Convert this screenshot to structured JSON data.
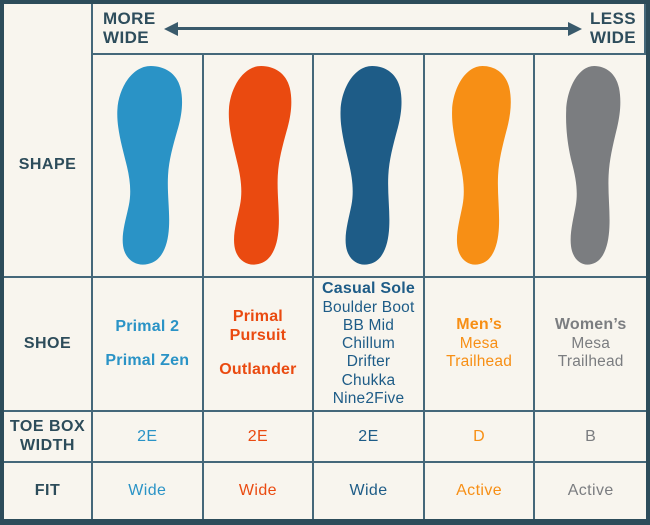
{
  "header": {
    "more": [
      "MORE",
      "WIDE"
    ],
    "less": [
      "LESS",
      "WIDE"
    ],
    "arrow_icon": "double-headed-arrow-icon"
  },
  "row_labels": {
    "shape": "SHAPE",
    "shoe": "SHOE",
    "toe_box_line1": "TOE BOX",
    "toe_box_line2": "WIDTH",
    "fit": "FIT"
  },
  "colors": {
    "background": "#f8f5ee",
    "outer_border": "#2d4c5a",
    "grid_line": "#45687a",
    "label_text": "#2d4c5a",
    "arrow": "#3a5a6b"
  },
  "columns": [
    {
      "name": "primal",
      "color": "#2a93c6",
      "shape_icon": "footprint-icon",
      "shoe_lines": [
        {
          "text": "Primal 2",
          "bold": true
        },
        {
          "text": "Primal Zen",
          "bold": true,
          "gap": true
        }
      ],
      "toe_box_width": "2E",
      "fit": "Wide"
    },
    {
      "name": "pursuit-outlander",
      "color": "#ea4a10",
      "shape_icon": "footprint-icon",
      "shoe_lines": [
        {
          "text": "Primal Pursuit",
          "bold": true
        },
        {
          "text": "Outlander",
          "bold": true,
          "gap": true
        }
      ],
      "toe_box_width": "2E",
      "fit": "Wide"
    },
    {
      "name": "casual-sole",
      "color": "#1e5c87",
      "shape_icon": "footprint-icon",
      "shoe_lines": [
        {
          "text": "Casual Sole",
          "bold": true
        },
        {
          "text": "Boulder Boot"
        },
        {
          "text": "BB Mid"
        },
        {
          "text": "Chillum"
        },
        {
          "text": "Drifter"
        },
        {
          "text": "Chukka"
        },
        {
          "text": "Nine2Five"
        }
      ],
      "toe_box_width": "2E",
      "fit": "Wide"
    },
    {
      "name": "mens-mesa-trailhead",
      "color": "#f78f15",
      "shape_icon": "footprint-icon",
      "shoe_lines": [
        {
          "text": "Men’s",
          "bold": true
        },
        {
          "text": "Mesa"
        },
        {
          "text": "Trailhead"
        }
      ],
      "toe_box_width": "D",
      "fit": "Active"
    },
    {
      "name": "womens-mesa-trailhead",
      "color": "#7b7d80",
      "shape_icon": "footprint-icon",
      "shoe_lines": [
        {
          "text": "Women’s",
          "bold": true
        },
        {
          "text": "Mesa"
        },
        {
          "text": "Trailhead"
        }
      ],
      "toe_box_width": "B",
      "fit": "Active"
    }
  ]
}
